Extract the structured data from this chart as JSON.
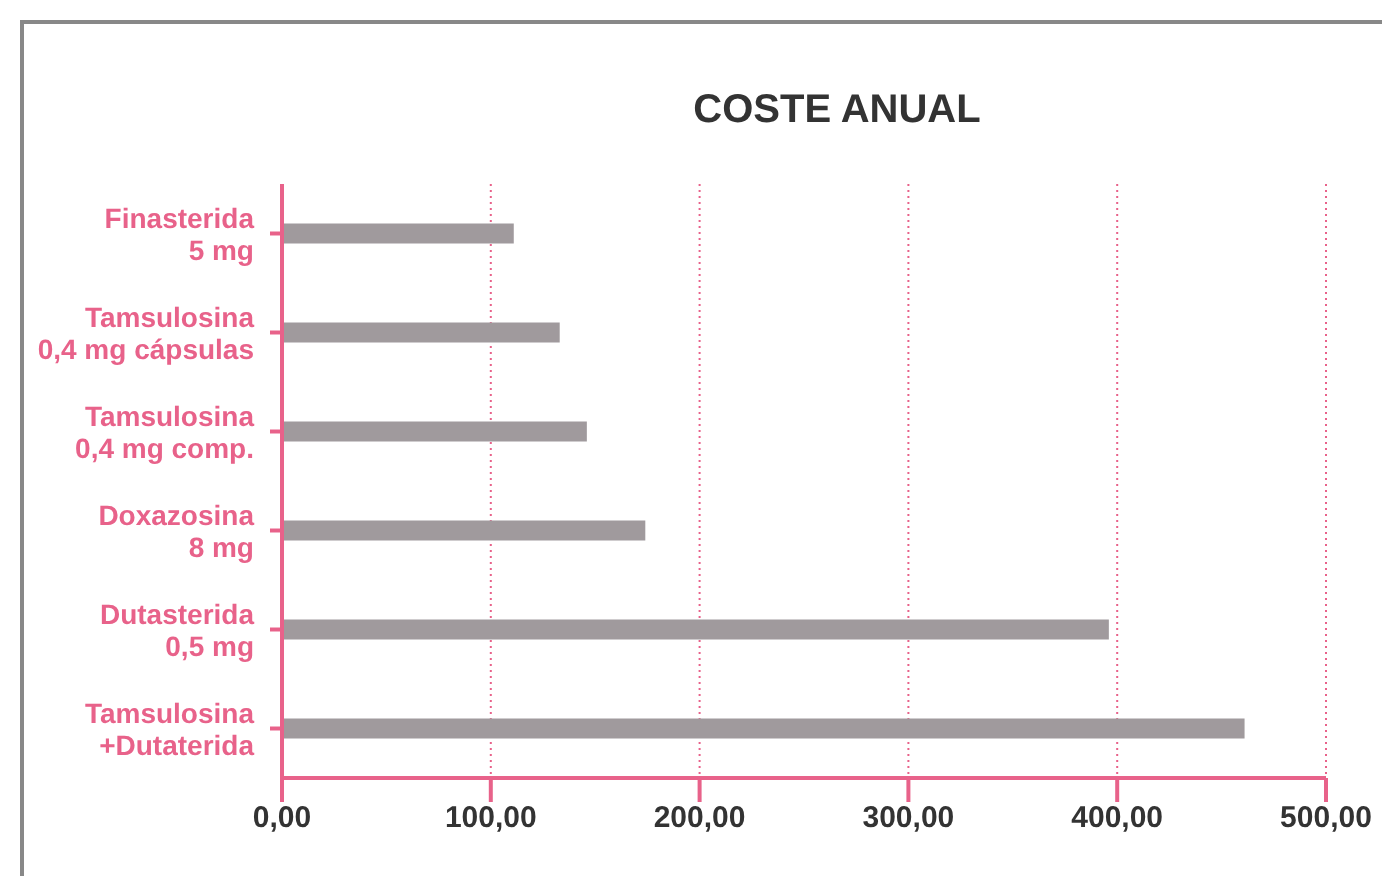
{
  "chart_data": {
    "type": "bar",
    "orientation": "horizontal",
    "title": "COSTE ANUAL",
    "categories": [
      "Finasterida\n5 mg",
      "Tamsulosina\n0,4 mg cápsulas",
      "Tamsulosina\n0,4 mg comp.",
      "Doxazosina\n8 mg",
      "Dutasterida\n0,5 mg",
      "Tamsulosina\n+Dutaterida"
    ],
    "values": [
      111,
      133,
      146,
      174,
      396,
      461
    ],
    "color": "#a09a9d",
    "xlim": [
      0,
      500
    ],
    "xticks": [
      {
        "value": 0,
        "label": "0,00"
      },
      {
        "value": 100,
        "label": "100,00"
      },
      {
        "value": 200,
        "label": "200,00"
      },
      {
        "value": 300,
        "label": "300,00"
      },
      {
        "value": 400,
        "label": "400,00"
      },
      {
        "value": 500,
        "label": "500,00"
      }
    ],
    "grid": "x"
  }
}
